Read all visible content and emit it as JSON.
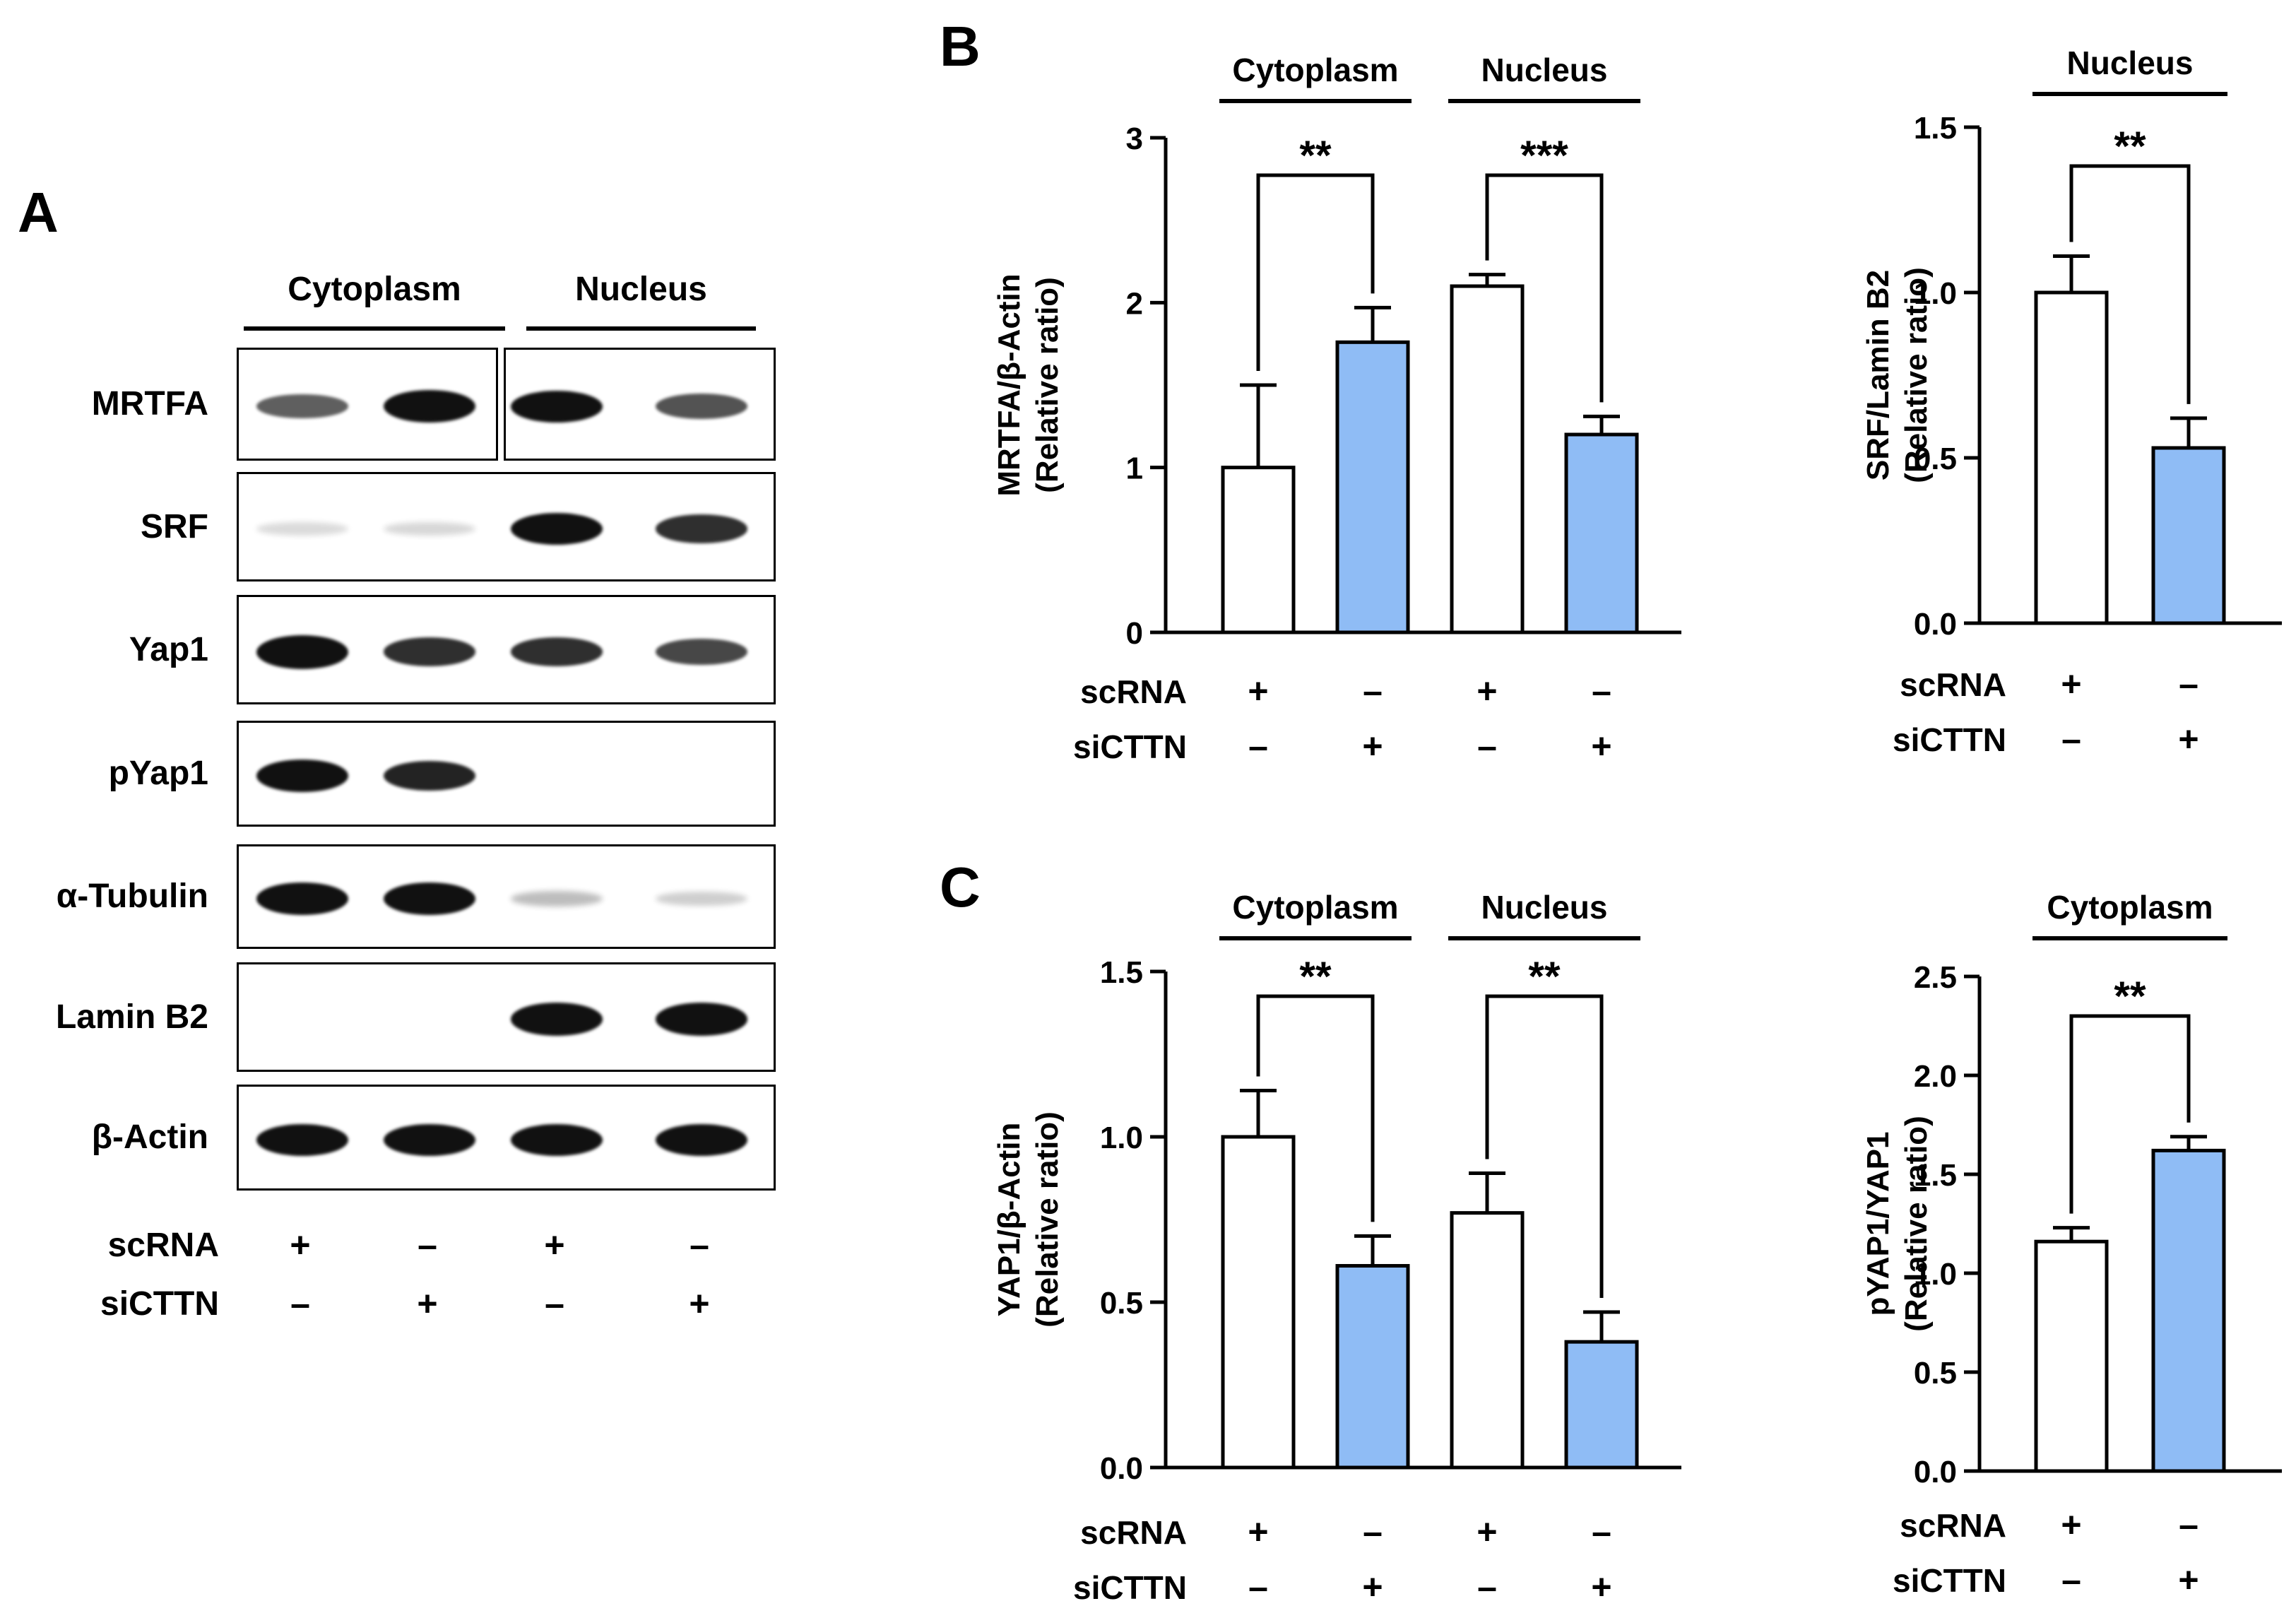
{
  "panel_letters": {
    "a": "A",
    "b": "B",
    "c": "C"
  },
  "blot": {
    "groups": [
      "Cytoplasm",
      "Nucleus"
    ],
    "rows": [
      {
        "label": "MRTFA",
        "intensity": [
          0.55,
          0.95,
          0.9,
          0.6
        ]
      },
      {
        "label": "SRF",
        "intensity": [
          0.03,
          0.04,
          0.9,
          0.75
        ]
      },
      {
        "label": "Yap1",
        "intensity": [
          1.0,
          0.75,
          0.75,
          0.65
        ]
      },
      {
        "label": "pYap1",
        "intensity": [
          0.95,
          0.8,
          0.0,
          0.0
        ]
      },
      {
        "label": "α-Tubulin",
        "intensity": [
          0.95,
          0.95,
          0.15,
          0.08
        ]
      },
      {
        "label": "Lamin B2",
        "intensity": [
          0.0,
          0.0,
          0.95,
          0.95
        ]
      },
      {
        "label": "β-Actin",
        "intensity": [
          0.9,
          0.9,
          0.9,
          0.9
        ]
      }
    ],
    "conditions": [
      {
        "label": "scRNA",
        "signs": [
          "+",
          "–",
          "+",
          "–"
        ]
      },
      {
        "label": "siCTTN",
        "signs": [
          "–",
          "+",
          "–",
          "+"
        ]
      }
    ]
  },
  "colors": {
    "treated_bar": "#8fbcf5",
    "control_bar": "#ffffff",
    "ink": "#000000"
  },
  "chart_data": [
    {
      "type": "bar",
      "ylabel": [
        "MRTFA/β-Actin",
        "(Relative ratio)"
      ],
      "ylim": [
        0,
        3
      ],
      "yticks": [
        "0",
        "1",
        "2",
        "3"
      ],
      "groups": [
        "Cytoplasm",
        "Nucleus"
      ],
      "values": [
        1.0,
        1.76,
        2.1,
        1.2
      ],
      "errors": [
        0.5,
        0.21,
        0.07,
        0.11
      ],
      "treated": [
        false,
        true,
        false,
        true
      ],
      "significance": [
        "**",
        "***"
      ],
      "conditions": [
        {
          "label": "scRNA",
          "signs": [
            "+",
            "–",
            "+",
            "–"
          ]
        },
        {
          "label": "siCTTN",
          "signs": [
            "–",
            "+",
            "–",
            "+"
          ]
        }
      ]
    },
    {
      "type": "bar",
      "ylabel": [
        "SRF/Lamin B2",
        "(Relative ratio)"
      ],
      "ylim": [
        0,
        1.5
      ],
      "yticks": [
        "0.0",
        "0.5",
        "1.0",
        "1.5"
      ],
      "groups": [
        "Nucleus"
      ],
      "values": [
        1.0,
        0.53
      ],
      "errors": [
        0.11,
        0.09
      ],
      "treated": [
        false,
        true
      ],
      "significance": [
        "**"
      ],
      "conditions": [
        {
          "label": "scRNA",
          "signs": [
            "+",
            "–"
          ]
        },
        {
          "label": "siCTTN",
          "signs": [
            "–",
            "+"
          ]
        }
      ]
    },
    {
      "type": "bar",
      "ylabel": [
        "YAP1/β-Actin",
        "(Relative ratio)"
      ],
      "ylim": [
        0,
        1.5
      ],
      "yticks": [
        "0.0",
        "0.5",
        "1.0",
        "1.5"
      ],
      "groups": [
        "Cytoplasm",
        "Nucleus"
      ],
      "values": [
        1.0,
        0.61,
        0.77,
        0.38
      ],
      "errors": [
        0.14,
        0.09,
        0.12,
        0.09
      ],
      "treated": [
        false,
        true,
        false,
        true
      ],
      "significance": [
        "**",
        "**"
      ],
      "conditions": [
        {
          "label": "scRNA",
          "signs": [
            "+",
            "–",
            "+",
            "–"
          ]
        },
        {
          "label": "siCTTN",
          "signs": [
            "–",
            "+",
            "–",
            "+"
          ]
        }
      ]
    },
    {
      "type": "bar",
      "ylabel": [
        "pYAP1/YAP1",
        "(Relative ratio)"
      ],
      "ylim": [
        0,
        2.5
      ],
      "yticks": [
        "0.0",
        "0.5",
        "1.0",
        "1.5",
        "2.0",
        "2.5"
      ],
      "groups": [
        "Cytoplasm"
      ],
      "values": [
        1.16,
        1.62
      ],
      "errors": [
        0.07,
        0.07
      ],
      "treated": [
        false,
        true
      ],
      "significance": [
        "**"
      ],
      "conditions": [
        {
          "label": "scRNA",
          "signs": [
            "+",
            "–"
          ]
        },
        {
          "label": "siCTTN",
          "signs": [
            "–",
            "+"
          ]
        }
      ]
    }
  ]
}
